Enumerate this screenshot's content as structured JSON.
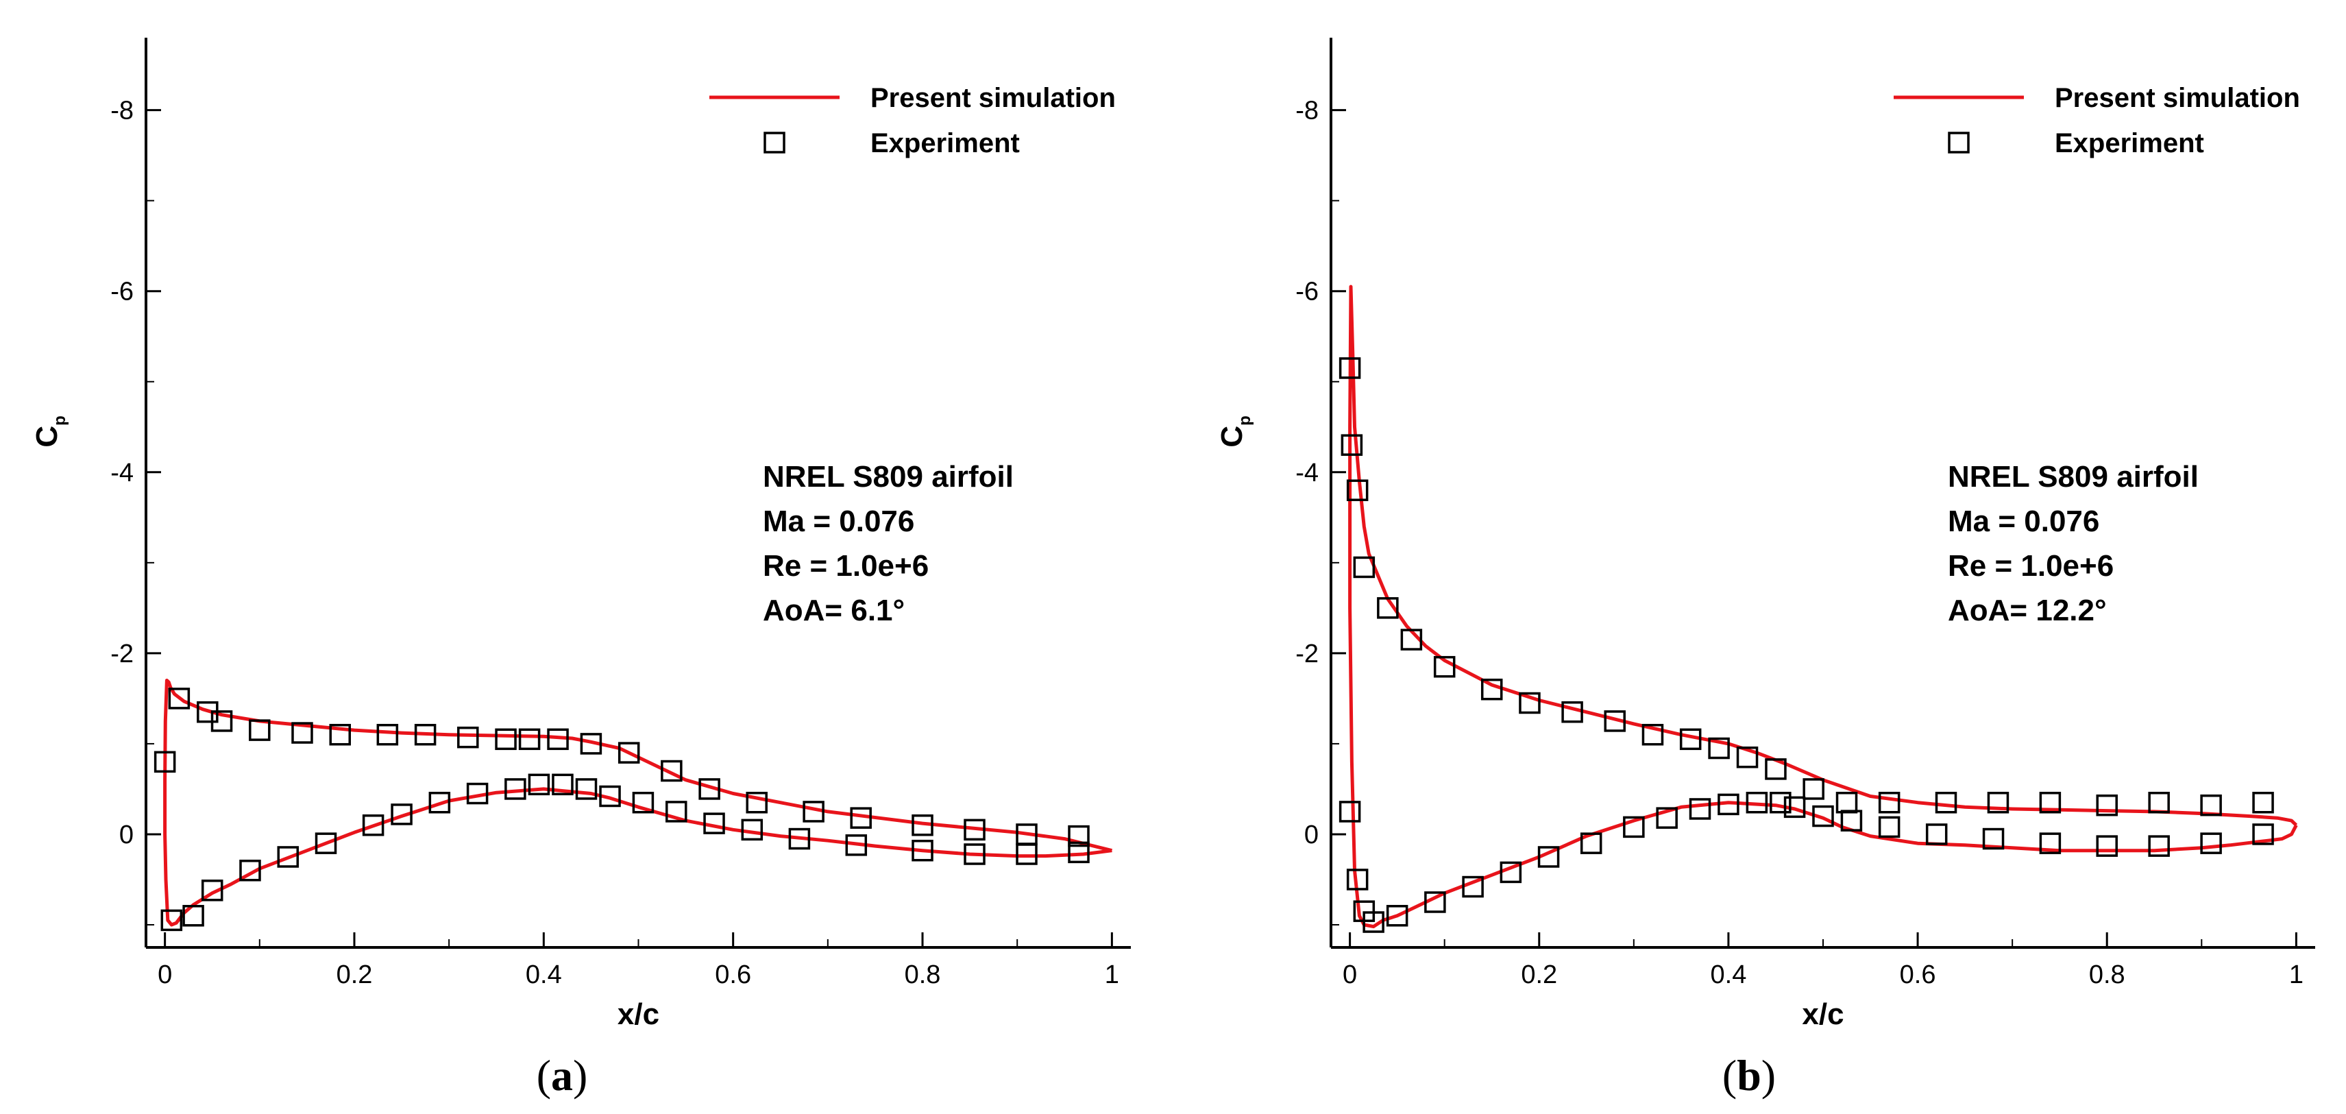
{
  "chart_data": [
    {
      "type": "line",
      "panel_label": "(a)",
      "panel_letter": "a",
      "xlabel": "x/c",
      "ylabel": "C",
      "ylabel_sub": "p",
      "xlim": [
        -0.02,
        1.02
      ],
      "ylim": [
        1.25,
        -8.8
      ],
      "y_inverted": true,
      "xticks": [
        "0",
        "0.2",
        "0.4",
        "0.6",
        "0.8",
        "1"
      ],
      "xtick_values": [
        0,
        0.2,
        0.4,
        0.6,
        0.8,
        1.0
      ],
      "yticks": [
        "-8",
        "-6",
        "-4",
        "-2",
        "0"
      ],
      "ytick_values": [
        -8,
        -6,
        -4,
        -2,
        0
      ],
      "legend": {
        "placement": "top-right",
        "simulation": "Present simulation",
        "experiment": "Experiment"
      },
      "colors": {
        "simulation": "#e8141b",
        "experiment": "#000000"
      },
      "annotation": [
        "NREL S809 airfoil",
        "Ma  = 0.076",
        "Re  = 1.0e+6",
        "AoA= 6.1°"
      ],
      "series": [
        {
          "name": "Present simulation",
          "style": "line",
          "points": [
            [
              1.0,
              0.18
            ],
            [
              0.97,
              0.22
            ],
            [
              0.93,
              0.24
            ],
            [
              0.9,
              0.24
            ],
            [
              0.85,
              0.22
            ],
            [
              0.8,
              0.18
            ],
            [
              0.75,
              0.13
            ],
            [
              0.7,
              0.07
            ],
            [
              0.65,
              0.02
            ],
            [
              0.6,
              -0.05
            ],
            [
              0.55,
              -0.15
            ],
            [
              0.5,
              -0.3
            ],
            [
              0.47,
              -0.4
            ],
            [
              0.45,
              -0.45
            ],
            [
              0.42,
              -0.48
            ],
            [
              0.4,
              -0.5
            ],
            [
              0.35,
              -0.46
            ],
            [
              0.3,
              -0.37
            ],
            [
              0.25,
              -0.2
            ],
            [
              0.2,
              -0.02
            ],
            [
              0.15,
              0.18
            ],
            [
              0.1,
              0.38
            ],
            [
              0.07,
              0.55
            ],
            [
              0.05,
              0.65
            ],
            [
              0.03,
              0.78
            ],
            [
              0.02,
              0.87
            ],
            [
              0.012,
              0.98
            ],
            [
              0.007,
              1.0
            ],
            [
              0.003,
              0.95
            ],
            [
              0.001,
              0.5
            ],
            [
              0.0,
              0.0
            ],
            [
              0.0,
              -0.6
            ],
            [
              0.0005,
              -1.25
            ],
            [
              0.002,
              -1.7
            ],
            [
              0.004,
              -1.68
            ],
            [
              0.006,
              -1.62
            ],
            [
              0.01,
              -1.55
            ],
            [
              0.02,
              -1.47
            ],
            [
              0.04,
              -1.38
            ],
            [
              0.06,
              -1.32
            ],
            [
              0.1,
              -1.25
            ],
            [
              0.15,
              -1.2
            ],
            [
              0.2,
              -1.15
            ],
            [
              0.25,
              -1.12
            ],
            [
              0.3,
              -1.1
            ],
            [
              0.35,
              -1.09
            ],
            [
              0.4,
              -1.08
            ],
            [
              0.43,
              -1.06
            ],
            [
              0.45,
              -1.02
            ],
            [
              0.48,
              -0.95
            ],
            [
              0.5,
              -0.85
            ],
            [
              0.55,
              -0.6
            ],
            [
              0.6,
              -0.45
            ],
            [
              0.65,
              -0.35
            ],
            [
              0.7,
              -0.25
            ],
            [
              0.8,
              -0.12
            ],
            [
              0.9,
              -0.02
            ],
            [
              0.95,
              0.05
            ],
            [
              1.0,
              0.18
            ]
          ]
        },
        {
          "name": "Experiment",
          "style": "markers",
          "points": [
            [
              0.0,
              -0.8
            ],
            [
              0.007,
              0.95
            ],
            [
              0.015,
              -1.5
            ],
            [
              0.03,
              0.9
            ],
            [
              0.045,
              -1.35
            ],
            [
              0.05,
              0.62
            ],
            [
              0.06,
              -1.25
            ],
            [
              0.09,
              0.4
            ],
            [
              0.1,
              -1.15
            ],
            [
              0.13,
              0.25
            ],
            [
              0.145,
              -1.12
            ],
            [
              0.17,
              0.1
            ],
            [
              0.185,
              -1.1
            ],
            [
              0.22,
              -0.1
            ],
            [
              0.235,
              -1.1
            ],
            [
              0.25,
              -0.22
            ],
            [
              0.275,
              -1.1
            ],
            [
              0.29,
              -0.35
            ],
            [
              0.32,
              -1.07
            ],
            [
              0.33,
              -0.45
            ],
            [
              0.36,
              -1.05
            ],
            [
              0.37,
              -0.5
            ],
            [
              0.385,
              -1.05
            ],
            [
              0.395,
              -0.55
            ],
            [
              0.415,
              -1.05
            ],
            [
              0.42,
              -0.55
            ],
            [
              0.45,
              -1.0
            ],
            [
              0.445,
              -0.5
            ],
            [
              0.47,
              -0.42
            ],
            [
              0.49,
              -0.9
            ],
            [
              0.505,
              -0.35
            ],
            [
              0.535,
              -0.7
            ],
            [
              0.54,
              -0.25
            ],
            [
              0.575,
              -0.5
            ],
            [
              0.58,
              -0.12
            ],
            [
              0.625,
              -0.35
            ],
            [
              0.62,
              -0.05
            ],
            [
              0.685,
              -0.25
            ],
            [
              0.67,
              0.05
            ],
            [
              0.735,
              -0.18
            ],
            [
              0.73,
              0.12
            ],
            [
              0.8,
              -0.1
            ],
            [
              0.8,
              0.18
            ],
            [
              0.855,
              -0.05
            ],
            [
              0.855,
              0.22
            ],
            [
              0.91,
              0.0
            ],
            [
              0.91,
              0.22
            ],
            [
              0.965,
              0.02
            ],
            [
              0.965,
              0.2
            ]
          ]
        }
      ]
    },
    {
      "type": "line",
      "panel_label": "(b)",
      "panel_letter": "b",
      "xlabel": "x/c",
      "ylabel": "C",
      "ylabel_sub": "p",
      "xlim": [
        -0.02,
        1.02
      ],
      "ylim": [
        1.25,
        -8.8
      ],
      "y_inverted": true,
      "xticks": [
        "0",
        "0.2",
        "0.4",
        "0.6",
        "0.8",
        "1"
      ],
      "xtick_values": [
        0,
        0.2,
        0.4,
        0.6,
        0.8,
        1.0
      ],
      "yticks": [
        "-8",
        "-6",
        "-4",
        "-2",
        "0"
      ],
      "ytick_values": [
        -8,
        -6,
        -4,
        -2,
        0
      ],
      "legend": {
        "placement": "top-right",
        "simulation": "Present simulation",
        "experiment": "Experiment"
      },
      "colors": {
        "simulation": "#e8141b",
        "experiment": "#000000"
      },
      "annotation": [
        "NREL S809 airfoil",
        "Ma  = 0.076",
        "Re  = 1.0e+6",
        "AoA= 12.2°"
      ],
      "series": [
        {
          "name": "Present simulation",
          "style": "line",
          "points": [
            [
              1.0,
              -0.1
            ],
            [
              0.995,
              0.0
            ],
            [
              0.985,
              0.05
            ],
            [
              0.97,
              0.07
            ],
            [
              0.93,
              0.12
            ],
            [
              0.9,
              0.15
            ],
            [
              0.85,
              0.18
            ],
            [
              0.8,
              0.18
            ],
            [
              0.75,
              0.18
            ],
            [
              0.7,
              0.15
            ],
            [
              0.65,
              0.12
            ],
            [
              0.6,
              0.1
            ],
            [
              0.55,
              0.02
            ],
            [
              0.52,
              -0.08
            ],
            [
              0.5,
              -0.18
            ],
            [
              0.47,
              -0.28
            ],
            [
              0.45,
              -0.32
            ],
            [
              0.4,
              -0.35
            ],
            [
              0.35,
              -0.3
            ],
            [
              0.3,
              -0.15
            ],
            [
              0.25,
              0.02
            ],
            [
              0.2,
              0.25
            ],
            [
              0.15,
              0.45
            ],
            [
              0.1,
              0.65
            ],
            [
              0.07,
              0.8
            ],
            [
              0.05,
              0.9
            ],
            [
              0.035,
              0.95
            ],
            [
              0.025,
              1.02
            ],
            [
              0.015,
              1.0
            ],
            [
              0.01,
              0.9
            ],
            [
              0.005,
              0.4
            ],
            [
              0.002,
              -0.8
            ],
            [
              0.0,
              -2.5
            ],
            [
              0.0,
              -4.5
            ],
            [
              0.001,
              -6.05
            ],
            [
              0.003,
              -5.3
            ],
            [
              0.005,
              -4.5
            ],
            [
              0.01,
              -3.9
            ],
            [
              0.015,
              -3.4
            ],
            [
              0.02,
              -3.1
            ],
            [
              0.03,
              -2.85
            ],
            [
              0.04,
              -2.6
            ],
            [
              0.06,
              -2.3
            ],
            [
              0.08,
              -2.08
            ],
            [
              0.1,
              -1.92
            ],
            [
              0.15,
              -1.65
            ],
            [
              0.2,
              -1.48
            ],
            [
              0.25,
              -1.35
            ],
            [
              0.3,
              -1.22
            ],
            [
              0.35,
              -1.1
            ],
            [
              0.4,
              -1.0
            ],
            [
              0.43,
              -0.9
            ],
            [
              0.46,
              -0.78
            ],
            [
              0.5,
              -0.6
            ],
            [
              0.55,
              -0.42
            ],
            [
              0.6,
              -0.35
            ],
            [
              0.65,
              -0.3
            ],
            [
              0.7,
              -0.28
            ],
            [
              0.75,
              -0.27
            ],
            [
              0.8,
              -0.26
            ],
            [
              0.85,
              -0.25
            ],
            [
              0.9,
              -0.23
            ],
            [
              0.95,
              -0.2
            ],
            [
              0.98,
              -0.18
            ],
            [
              0.995,
              -0.15
            ],
            [
              1.0,
              -0.1
            ]
          ]
        },
        {
          "name": "Experiment",
          "style": "markers",
          "points": [
            [
              0.0,
              -5.15
            ],
            [
              0.002,
              -4.3
            ],
            [
              0.008,
              -3.8
            ],
            [
              0.015,
              -2.95
            ],
            [
              0.04,
              -2.5
            ],
            [
              0.065,
              -2.15
            ],
            [
              0.1,
              -1.85
            ],
            [
              0.15,
              -1.6
            ],
            [
              0.19,
              -1.45
            ],
            [
              0.235,
              -1.35
            ],
            [
              0.28,
              -1.25
            ],
            [
              0.32,
              -1.1
            ],
            [
              0.36,
              -1.05
            ],
            [
              0.39,
              -0.95
            ],
            [
              0.42,
              -0.85
            ],
            [
              0.45,
              -0.72
            ],
            [
              0.49,
              -0.5
            ],
            [
              0.525,
              -0.35
            ],
            [
              0.57,
              -0.35
            ],
            [
              0.63,
              -0.35
            ],
            [
              0.685,
              -0.35
            ],
            [
              0.74,
              -0.35
            ],
            [
              0.8,
              -0.32
            ],
            [
              0.855,
              -0.35
            ],
            [
              0.91,
              -0.32
            ],
            [
              0.965,
              -0.35
            ],
            [
              0.0,
              -0.25
            ],
            [
              0.008,
              0.5
            ],
            [
              0.015,
              0.85
            ],
            [
              0.025,
              0.97
            ],
            [
              0.05,
              0.9
            ],
            [
              0.09,
              0.75
            ],
            [
              0.13,
              0.58
            ],
            [
              0.17,
              0.42
            ],
            [
              0.21,
              0.25
            ],
            [
              0.255,
              0.1
            ],
            [
              0.3,
              -0.08
            ],
            [
              0.335,
              -0.18
            ],
            [
              0.37,
              -0.28
            ],
            [
              0.4,
              -0.33
            ],
            [
              0.43,
              -0.35
            ],
            [
              0.455,
              -0.35
            ],
            [
              0.47,
              -0.3
            ],
            [
              0.5,
              -0.2
            ],
            [
              0.53,
              -0.15
            ],
            [
              0.57,
              -0.08
            ],
            [
              0.62,
              0.0
            ],
            [
              0.68,
              0.05
            ],
            [
              0.74,
              0.1
            ],
            [
              0.8,
              0.13
            ],
            [
              0.855,
              0.13
            ],
            [
              0.91,
              0.1
            ],
            [
              0.965,
              0.0
            ]
          ]
        }
      ]
    }
  ]
}
